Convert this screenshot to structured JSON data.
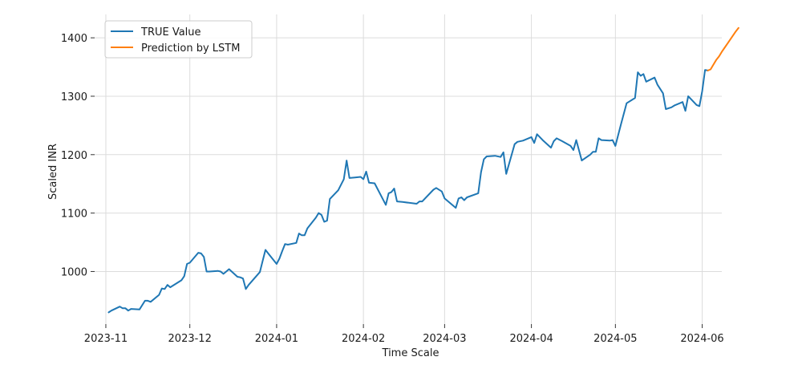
{
  "chart_data": {
    "type": "line",
    "title": "",
    "xlabel": "Time Scale",
    "ylabel": "Scaled INR",
    "x_range": [
      "2023-10-28",
      "2024-06-08"
    ],
    "ylim": [
      910,
      1440
    ],
    "grid": true,
    "legend_position": "top-left",
    "x_ticks": [
      {
        "date": "2023-11-01",
        "label": "2023-11"
      },
      {
        "date": "2023-12-01",
        "label": "2023-12"
      },
      {
        "date": "2024-01-01",
        "label": "2024-01"
      },
      {
        "date": "2024-02-01",
        "label": "2024-02"
      },
      {
        "date": "2024-03-01",
        "label": "2024-03"
      },
      {
        "date": "2024-04-01",
        "label": "2024-04"
      },
      {
        "date": "2024-05-01",
        "label": "2024-05"
      },
      {
        "date": "2024-06-01",
        "label": "2024-06"
      }
    ],
    "y_ticks": [
      1000,
      1100,
      1200,
      1300,
      1400
    ],
    "series": [
      {
        "name": "TRUE Value",
        "color": "#1f77b4",
        "points": [
          [
            "2023-11-02",
            930
          ],
          [
            "2023-11-03",
            933
          ],
          [
            "2023-11-06",
            940
          ],
          [
            "2023-11-07",
            937
          ],
          [
            "2023-11-08",
            937
          ],
          [
            "2023-11-09",
            933
          ],
          [
            "2023-11-10",
            936
          ],
          [
            "2023-11-13",
            935
          ],
          [
            "2023-11-15",
            950
          ],
          [
            "2023-11-16",
            950
          ],
          [
            "2023-11-17",
            948
          ],
          [
            "2023-11-20",
            960
          ],
          [
            "2023-11-21",
            971
          ],
          [
            "2023-11-22",
            970
          ],
          [
            "2023-11-23",
            977
          ],
          [
            "2023-11-24",
            973
          ],
          [
            "2023-11-28",
            985
          ],
          [
            "2023-11-29",
            992
          ],
          [
            "2023-11-30",
            1013
          ],
          [
            "2023-12-01",
            1015
          ],
          [
            "2023-12-04",
            1032
          ],
          [
            "2023-12-05",
            1031
          ],
          [
            "2023-12-06",
            1025
          ],
          [
            "2023-12-07",
            1000
          ],
          [
            "2023-12-08",
            1000
          ],
          [
            "2023-12-11",
            1001
          ],
          [
            "2023-12-12",
            1000
          ],
          [
            "2023-12-13",
            996
          ],
          [
            "2023-12-14",
            1000
          ],
          [
            "2023-12-15",
            1004
          ],
          [
            "2023-12-18",
            991
          ],
          [
            "2023-12-19",
            990
          ],
          [
            "2023-12-20",
            988
          ],
          [
            "2023-12-21",
            970
          ],
          [
            "2023-12-22",
            977
          ],
          [
            "2023-12-26",
            999
          ],
          [
            "2023-12-27",
            1018
          ],
          [
            "2023-12-28",
            1037
          ],
          [
            "2023-12-29",
            1031
          ],
          [
            "2024-01-01",
            1013
          ],
          [
            "2024-01-02",
            1022
          ],
          [
            "2024-01-03",
            1035
          ],
          [
            "2024-01-04",
            1047
          ],
          [
            "2024-01-05",
            1046
          ],
          [
            "2024-01-08",
            1049
          ],
          [
            "2024-01-09",
            1065
          ],
          [
            "2024-01-10",
            1062
          ],
          [
            "2024-01-11",
            1062
          ],
          [
            "2024-01-12",
            1074
          ],
          [
            "2024-01-15",
            1092
          ],
          [
            "2024-01-16",
            1100
          ],
          [
            "2024-01-17",
            1097
          ],
          [
            "2024-01-18",
            1085
          ],
          [
            "2024-01-19",
            1087
          ],
          [
            "2024-01-20",
            1124
          ],
          [
            "2024-01-23",
            1139
          ],
          [
            "2024-01-25",
            1158
          ],
          [
            "2024-01-26",
            1190
          ],
          [
            "2024-01-27",
            1160
          ],
          [
            "2024-01-29",
            1161
          ],
          [
            "2024-01-31",
            1162
          ],
          [
            "2024-02-01",
            1158
          ],
          [
            "2024-02-02",
            1171
          ],
          [
            "2024-02-03",
            1152
          ],
          [
            "2024-02-05",
            1151
          ],
          [
            "2024-02-09",
            1114
          ],
          [
            "2024-02-10",
            1134
          ],
          [
            "2024-02-11",
            1136
          ],
          [
            "2024-02-12",
            1142
          ],
          [
            "2024-02-13",
            1120
          ],
          [
            "2024-02-15",
            1119
          ],
          [
            "2024-02-20",
            1116
          ],
          [
            "2024-02-21",
            1120
          ],
          [
            "2024-02-22",
            1120
          ],
          [
            "2024-02-26",
            1140
          ],
          [
            "2024-02-27",
            1143
          ],
          [
            "2024-02-29",
            1137
          ],
          [
            "2024-03-01",
            1125
          ],
          [
            "2024-03-05",
            1109
          ],
          [
            "2024-03-06",
            1125
          ],
          [
            "2024-03-07",
            1127
          ],
          [
            "2024-03-08",
            1122
          ],
          [
            "2024-03-09",
            1127
          ],
          [
            "2024-03-13",
            1134
          ],
          [
            "2024-03-14",
            1170
          ],
          [
            "2024-03-15",
            1192
          ],
          [
            "2024-03-16",
            1197
          ],
          [
            "2024-03-19",
            1198
          ],
          [
            "2024-03-21",
            1196
          ],
          [
            "2024-03-22",
            1204
          ],
          [
            "2024-03-23",
            1167
          ],
          [
            "2024-03-26",
            1218
          ],
          [
            "2024-03-27",
            1222
          ],
          [
            "2024-03-29",
            1224
          ],
          [
            "2024-04-01",
            1230
          ],
          [
            "2024-04-02",
            1220
          ],
          [
            "2024-04-03",
            1235
          ],
          [
            "2024-04-05",
            1225
          ],
          [
            "2024-04-08",
            1212
          ],
          [
            "2024-04-09",
            1223
          ],
          [
            "2024-04-10",
            1228
          ],
          [
            "2024-04-12",
            1223
          ],
          [
            "2024-04-15",
            1215
          ],
          [
            "2024-04-16",
            1208
          ],
          [
            "2024-04-17",
            1225
          ],
          [
            "2024-04-19",
            1190
          ],
          [
            "2024-04-22",
            1200
          ],
          [
            "2024-04-23",
            1205
          ],
          [
            "2024-04-24",
            1205
          ],
          [
            "2024-04-25",
            1228
          ],
          [
            "2024-04-26",
            1225
          ],
          [
            "2024-04-29",
            1224
          ],
          [
            "2024-04-30",
            1225
          ],
          [
            "2024-05-01",
            1215
          ],
          [
            "2024-05-03",
            1252
          ],
          [
            "2024-05-05",
            1288
          ],
          [
            "2024-05-08",
            1297
          ],
          [
            "2024-05-09",
            1341
          ],
          [
            "2024-05-10",
            1335
          ],
          [
            "2024-05-11",
            1338
          ],
          [
            "2024-05-12",
            1325
          ],
          [
            "2024-05-15",
            1332
          ],
          [
            "2024-05-16",
            1320
          ],
          [
            "2024-05-18",
            1305
          ],
          [
            "2024-05-19",
            1278
          ],
          [
            "2024-05-21",
            1281
          ],
          [
            "2024-05-22",
            1284
          ],
          [
            "2024-05-25",
            1290
          ],
          [
            "2024-05-26",
            1275
          ],
          [
            "2024-05-27",
            1300
          ],
          [
            "2024-05-28",
            1295
          ],
          [
            "2024-05-30",
            1285
          ],
          [
            "2024-05-31",
            1283
          ],
          [
            "2024-06-01",
            1309
          ],
          [
            "2024-06-02",
            1345
          ],
          [
            "2024-06-03",
            1344
          ]
        ]
      },
      {
        "name": "Prediction by LSTM",
        "color": "#ff7f0e",
        "points": [
          [
            "2024-06-03",
            1344
          ],
          [
            "2024-06-04",
            1346
          ],
          [
            "2024-06-05",
            1354
          ],
          [
            "2024-06-06",
            1362
          ],
          [
            "2024-06-07",
            1368
          ],
          [
            "2024-06-08",
            1376
          ],
          [
            "2024-06-09",
            1383
          ],
          [
            "2024-06-10",
            1390
          ],
          [
            "2024-06-11",
            1397
          ],
          [
            "2024-06-12",
            1404
          ],
          [
            "2024-06-13",
            1411
          ],
          [
            "2024-06-14",
            1417
          ]
        ]
      }
    ]
  }
}
